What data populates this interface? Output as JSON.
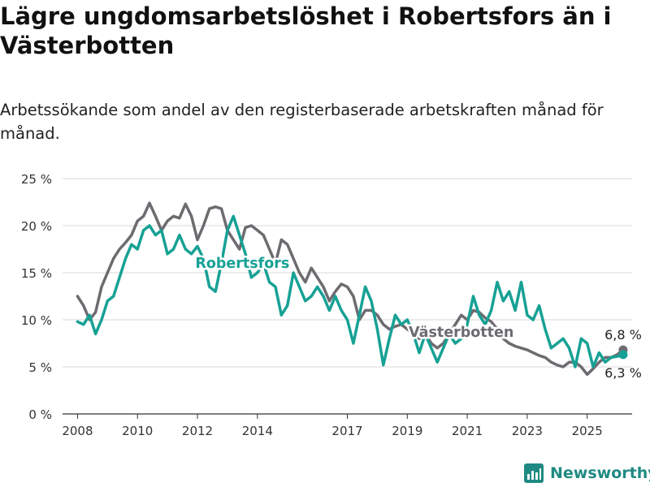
{
  "header": {
    "title": "Lägre ungdomsarbetslöshet i Robertsfors än i Västerbotten",
    "subtitle": "Arbetssökande som andel av den registerbaserade arbetskraften månad för månad."
  },
  "brand": {
    "name": "Newsworthy",
    "icon": "newsworthy-logo-icon",
    "color": "#1f8a83"
  },
  "chart_data": {
    "type": "line",
    "title": "Lägre ungdomsarbetslöshet i Robertsfors än i Västerbotten",
    "subtitle": "Arbetssökande som andel av den registerbaserade arbetskraften månad för månad.",
    "xlabel": "",
    "ylabel": "",
    "xlim": [
      2007.5,
      2026.5
    ],
    "ylim": [
      0,
      25
    ],
    "y_ticks": [
      0,
      5,
      10,
      15,
      20,
      25
    ],
    "y_tick_labels": [
      "0 %",
      "5 %",
      "10 %",
      "15 %",
      "20 %",
      "25 %"
    ],
    "x_ticks": [
      2008,
      2010,
      2012,
      2014,
      2017,
      2019,
      2021,
      2023,
      2025
    ],
    "x_tick_labels": [
      "2008",
      "2010",
      "2012",
      "2014",
      "2017",
      "2019",
      "2021",
      "2023",
      "2025"
    ],
    "grid": "horizontal",
    "series": [
      {
        "name": "Västerbotten",
        "color": "#6e6b70",
        "end_label": "6,8 %",
        "points": [
          [
            2008.0,
            12.5
          ],
          [
            2008.2,
            11.5
          ],
          [
            2008.4,
            10.0
          ],
          [
            2008.6,
            10.8
          ],
          [
            2008.8,
            13.5
          ],
          [
            2009.0,
            15.0
          ],
          [
            2009.2,
            16.5
          ],
          [
            2009.4,
            17.5
          ],
          [
            2009.6,
            18.2
          ],
          [
            2009.8,
            19.0
          ],
          [
            2010.0,
            20.5
          ],
          [
            2010.2,
            21.0
          ],
          [
            2010.4,
            22.4
          ],
          [
            2010.6,
            21.0
          ],
          [
            2010.8,
            19.5
          ],
          [
            2011.0,
            20.5
          ],
          [
            2011.2,
            21.0
          ],
          [
            2011.4,
            20.8
          ],
          [
            2011.6,
            22.3
          ],
          [
            2011.8,
            21.0
          ],
          [
            2012.0,
            18.5
          ],
          [
            2012.2,
            20.0
          ],
          [
            2012.4,
            21.8
          ],
          [
            2012.6,
            22.0
          ],
          [
            2012.8,
            21.8
          ],
          [
            2013.0,
            19.5
          ],
          [
            2013.2,
            18.5
          ],
          [
            2013.4,
            17.5
          ],
          [
            2013.6,
            19.8
          ],
          [
            2013.8,
            20.0
          ],
          [
            2014.0,
            19.5
          ],
          [
            2014.2,
            19.0
          ],
          [
            2014.4,
            17.5
          ],
          [
            2014.6,
            16.0
          ],
          [
            2014.8,
            18.5
          ],
          [
            2015.0,
            18.0
          ],
          [
            2015.2,
            16.5
          ],
          [
            2015.4,
            15.0
          ],
          [
            2015.6,
            14.0
          ],
          [
            2015.8,
            15.5
          ],
          [
            2016.0,
            14.5
          ],
          [
            2016.2,
            13.5
          ],
          [
            2016.4,
            12.0
          ],
          [
            2016.6,
            13.0
          ],
          [
            2016.8,
            13.8
          ],
          [
            2017.0,
            13.5
          ],
          [
            2017.2,
            12.5
          ],
          [
            2017.4,
            10.0
          ],
          [
            2017.6,
            11.0
          ],
          [
            2017.8,
            11.0
          ],
          [
            2018.0,
            10.5
          ],
          [
            2018.2,
            9.5
          ],
          [
            2018.4,
            9.0
          ],
          [
            2018.6,
            9.3
          ],
          [
            2018.8,
            9.5
          ],
          [
            2019.0,
            9.0
          ],
          [
            2019.2,
            8.5
          ],
          [
            2019.4,
            8.0
          ],
          [
            2019.6,
            8.5
          ],
          [
            2019.8,
            7.5
          ],
          [
            2020.0,
            7.0
          ],
          [
            2020.2,
            7.5
          ],
          [
            2020.4,
            8.5
          ],
          [
            2020.6,
            9.5
          ],
          [
            2020.8,
            10.5
          ],
          [
            2021.0,
            10.0
          ],
          [
            2021.2,
            11.0
          ],
          [
            2021.4,
            10.8
          ],
          [
            2021.6,
            10.2
          ],
          [
            2021.8,
            9.8
          ],
          [
            2022.0,
            9.0
          ],
          [
            2022.2,
            8.0
          ],
          [
            2022.4,
            7.5
          ],
          [
            2022.6,
            7.2
          ],
          [
            2022.8,
            7.0
          ],
          [
            2023.0,
            6.8
          ],
          [
            2023.2,
            6.5
          ],
          [
            2023.4,
            6.2
          ],
          [
            2023.6,
            6.0
          ],
          [
            2023.8,
            5.5
          ],
          [
            2024.0,
            5.2
          ],
          [
            2024.2,
            5.0
          ],
          [
            2024.4,
            5.5
          ],
          [
            2024.6,
            5.5
          ],
          [
            2024.8,
            5.0
          ],
          [
            2025.0,
            4.2
          ],
          [
            2025.2,
            4.8
          ],
          [
            2025.4,
            5.5
          ],
          [
            2025.6,
            6.0
          ],
          [
            2025.8,
            6.0
          ],
          [
            2026.0,
            6.3
          ],
          [
            2026.2,
            6.8
          ]
        ]
      },
      {
        "name": "Robertsfors",
        "color": "#17a195",
        "end_label": "6,3 %",
        "points": [
          [
            2008.0,
            9.8
          ],
          [
            2008.2,
            9.5
          ],
          [
            2008.4,
            10.5
          ],
          [
            2008.6,
            8.5
          ],
          [
            2008.8,
            10.0
          ],
          [
            2009.0,
            12.0
          ],
          [
            2009.2,
            12.5
          ],
          [
            2009.4,
            14.5
          ],
          [
            2009.6,
            16.5
          ],
          [
            2009.8,
            18.0
          ],
          [
            2010.0,
            17.5
          ],
          [
            2010.2,
            19.5
          ],
          [
            2010.4,
            20.0
          ],
          [
            2010.6,
            19.0
          ],
          [
            2010.8,
            19.5
          ],
          [
            2011.0,
            17.0
          ],
          [
            2011.2,
            17.5
          ],
          [
            2011.4,
            19.0
          ],
          [
            2011.6,
            17.5
          ],
          [
            2011.8,
            17.0
          ],
          [
            2012.0,
            17.8
          ],
          [
            2012.2,
            16.5
          ],
          [
            2012.4,
            13.5
          ],
          [
            2012.6,
            13.0
          ],
          [
            2012.8,
            16.0
          ],
          [
            2013.0,
            19.5
          ],
          [
            2013.2,
            21.0
          ],
          [
            2013.4,
            19.0
          ],
          [
            2013.6,
            17.0
          ],
          [
            2013.8,
            14.5
          ],
          [
            2014.0,
            15.0
          ],
          [
            2014.2,
            16.0
          ],
          [
            2014.4,
            14.0
          ],
          [
            2014.6,
            13.5
          ],
          [
            2014.8,
            10.5
          ],
          [
            2015.0,
            11.5
          ],
          [
            2015.2,
            15.0
          ],
          [
            2015.4,
            13.5
          ],
          [
            2015.6,
            12.0
          ],
          [
            2015.8,
            12.5
          ],
          [
            2016.0,
            13.5
          ],
          [
            2016.2,
            12.5
          ],
          [
            2016.4,
            11.0
          ],
          [
            2016.6,
            12.5
          ],
          [
            2016.8,
            11.0
          ],
          [
            2017.0,
            10.0
          ],
          [
            2017.2,
            7.5
          ],
          [
            2017.4,
            10.5
          ],
          [
            2017.6,
            13.5
          ],
          [
            2017.8,
            12.0
          ],
          [
            2018.0,
            9.0
          ],
          [
            2018.2,
            5.2
          ],
          [
            2018.4,
            8.0
          ],
          [
            2018.6,
            10.5
          ],
          [
            2018.8,
            9.5
          ],
          [
            2019.0,
            10.0
          ],
          [
            2019.2,
            8.5
          ],
          [
            2019.4,
            6.5
          ],
          [
            2019.6,
            8.5
          ],
          [
            2019.8,
            7.0
          ],
          [
            2020.0,
            5.5
          ],
          [
            2020.2,
            7.0
          ],
          [
            2020.4,
            8.5
          ],
          [
            2020.6,
            7.5
          ],
          [
            2020.8,
            8.0
          ],
          [
            2021.0,
            9.5
          ],
          [
            2021.2,
            12.5
          ],
          [
            2021.4,
            10.5
          ],
          [
            2021.6,
            9.5
          ],
          [
            2021.8,
            11.0
          ],
          [
            2022.0,
            14.0
          ],
          [
            2022.2,
            12.0
          ],
          [
            2022.4,
            13.0
          ],
          [
            2022.6,
            11.0
          ],
          [
            2022.8,
            14.0
          ],
          [
            2023.0,
            10.5
          ],
          [
            2023.2,
            10.0
          ],
          [
            2023.4,
            11.5
          ],
          [
            2023.6,
            9.0
          ],
          [
            2023.8,
            7.0
          ],
          [
            2024.0,
            7.5
          ],
          [
            2024.2,
            8.0
          ],
          [
            2024.4,
            7.0
          ],
          [
            2024.6,
            5.0
          ],
          [
            2024.8,
            8.0
          ],
          [
            2025.0,
            7.5
          ],
          [
            2025.2,
            5.0
          ],
          [
            2025.4,
            6.5
          ],
          [
            2025.6,
            5.5
          ],
          [
            2025.8,
            6.0
          ],
          [
            2026.0,
            6.1
          ],
          [
            2026.2,
            6.3
          ]
        ]
      }
    ],
    "annotations": [
      {
        "text": "Robertsfors",
        "series": "Robertsfors",
        "x": 2013.5,
        "y": 15.5
      },
      {
        "text": "Västerbotten",
        "series": "Västerbotten",
        "x": 2020.8,
        "y": 8.2
      }
    ]
  }
}
